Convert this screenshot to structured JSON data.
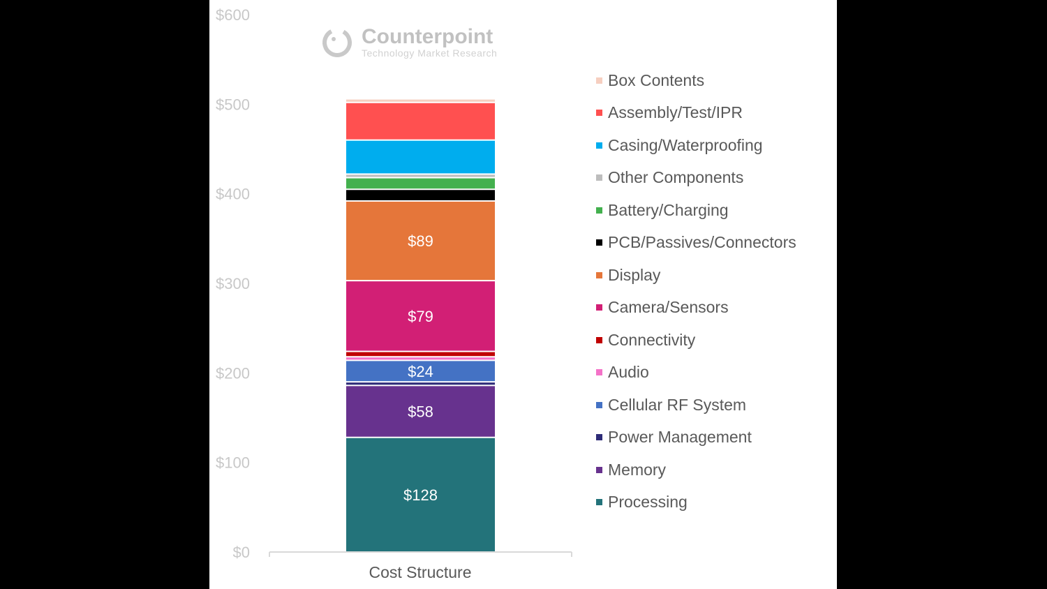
{
  "chart_data": {
    "type": "bar",
    "stacked": true,
    "title": "",
    "xlabel": "",
    "ylabel": "",
    "categories": [
      "Cost Structure"
    ],
    "ylim": [
      0,
      600
    ],
    "yticks": [
      0,
      100,
      200,
      300,
      400,
      500,
      600
    ],
    "ytick_labels": [
      "$0",
      "$100",
      "$200",
      "$300",
      "$400",
      "$500",
      "$600"
    ],
    "grid": false,
    "legend_position": "right",
    "series": [
      {
        "name": "Processing",
        "values": [
          128
        ],
        "color": "#23737A",
        "label": "$128"
      },
      {
        "name": "Memory",
        "values": [
          58
        ],
        "color": "#67328E",
        "label": "$58"
      },
      {
        "name": "Power Management",
        "values": [
          4
        ],
        "color": "#2E2C78",
        "label": ""
      },
      {
        "name": "Cellular RF System",
        "values": [
          24
        ],
        "color": "#4472C4",
        "label": "$24"
      },
      {
        "name": "Audio",
        "values": [
          4
        ],
        "color": "#F472C8",
        "label": ""
      },
      {
        "name": "Connectivity",
        "values": [
          6
        ],
        "color": "#C00000",
        "label": ""
      },
      {
        "name": "Camera/Sensors",
        "values": [
          79
        ],
        "color": "#D21F75",
        "label": "$79"
      },
      {
        "name": "Display",
        "values": [
          89
        ],
        "color": "#E5763A",
        "label": "$89"
      },
      {
        "name": "PCB/Passives/Connectors",
        "values": [
          13
        ],
        "color": "#000000",
        "label": ""
      },
      {
        "name": "Battery/Charging",
        "values": [
          13
        ],
        "color": "#43B04E",
        "label": ""
      },
      {
        "name": "Other Components",
        "values": [
          4
        ],
        "color": "#BDBDBD",
        "label": ""
      },
      {
        "name": "Casing/Waterproofing",
        "values": [
          38
        ],
        "color": "#00ADEE",
        "label": ""
      },
      {
        "name": "Assembly/Test/IPR",
        "values": [
          42
        ],
        "color": "#FF5050",
        "label": ""
      },
      {
        "name": "Box Contents",
        "values": [
          4
        ],
        "color": "#F6CFC0",
        "label": ""
      }
    ]
  },
  "watermark": {
    "title": "Counterpoint",
    "subtitle": "Technology Market Research"
  }
}
